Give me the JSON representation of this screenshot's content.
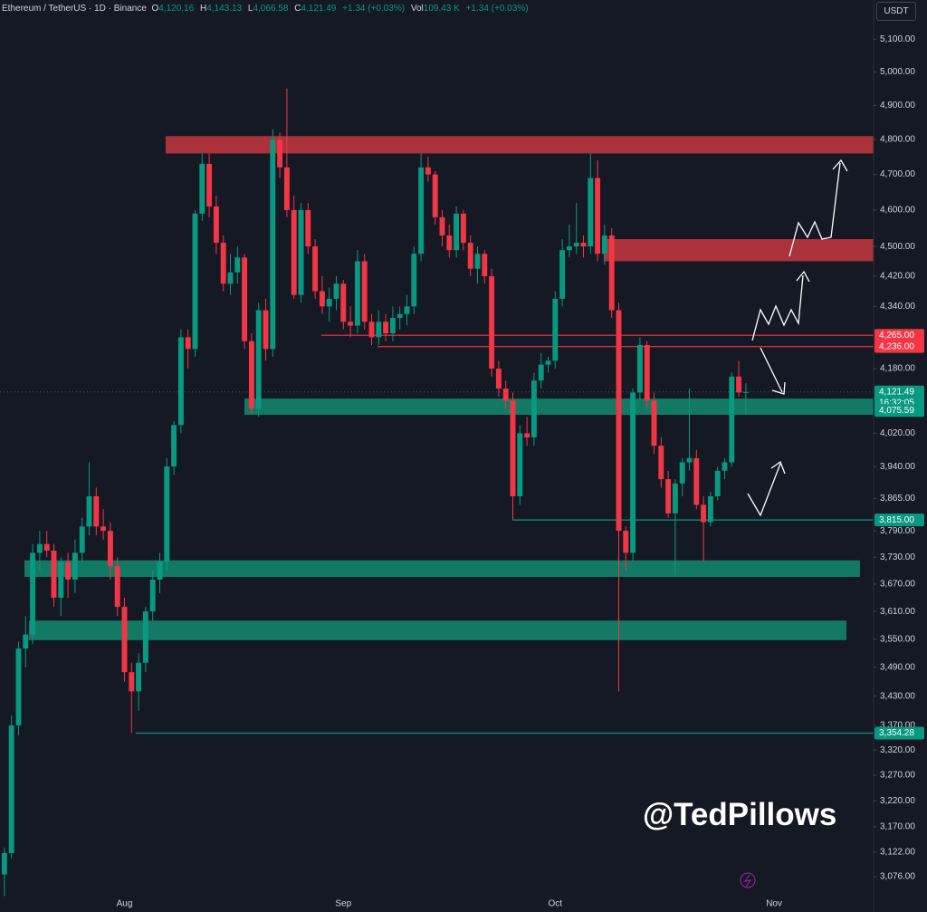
{
  "header": {
    "title": "Ethereum / TetherUS · 1D · Binance",
    "ohlc": [
      {
        "key": "O",
        "value": "4,120.16"
      },
      {
        "key": "H",
        "value": "4,143.13"
      },
      {
        "key": "L",
        "value": "4,066.58"
      },
      {
        "key": "C",
        "value": "4,121.49"
      }
    ],
    "change": "+1.34 (+0.03%)",
    "volume_key": "Vol",
    "volume": "109.43 K",
    "volume_change": "+1.34 (+0.03%)",
    "currency": "USDT",
    "watermark": "@TedPillows"
  },
  "chart_data": {
    "type": "candlestick",
    "log_scale": true,
    "grid": false,
    "up_color": "#089981",
    "down_color": "#f23645",
    "categories": [
      null,
      null,
      null,
      null,
      null,
      null,
      null,
      null,
      null,
      null,
      null,
      null,
      null,
      null,
      null,
      null,
      null,
      "Aug",
      null,
      null,
      null,
      null,
      null,
      null,
      null,
      null,
      null,
      null,
      null,
      null,
      null,
      null,
      null,
      null,
      null,
      null,
      null,
      null,
      null,
      null,
      null,
      null,
      null,
      null,
      null,
      null,
      null,
      null,
      "Sep",
      null,
      null,
      null,
      null,
      null,
      null,
      null,
      null,
      null,
      null,
      null,
      null,
      null,
      null,
      null,
      null,
      null,
      null,
      null,
      null,
      null,
      null,
      null,
      null,
      null,
      null,
      null,
      null,
      null,
      "Oct",
      null,
      null,
      null,
      null,
      null,
      null,
      null,
      null,
      null,
      null,
      null,
      null,
      null,
      null,
      null,
      null,
      null,
      null,
      null,
      null,
      null,
      null,
      null,
      null,
      null,
      null,
      null,
      null,
      null,
      null,
      "Nov"
    ],
    "open": [
      3080,
      3120,
      3370,
      3530,
      3560,
      3740,
      3760,
      3745,
      3640,
      3720,
      3680,
      3740,
      3800,
      3870,
      3800,
      3790,
      3710,
      3620,
      3480,
      3440,
      3500,
      3610,
      3680,
      3720,
      3940,
      4040,
      4260,
      4230,
      4590,
      4730,
      4610,
      4510,
      4400,
      4430,
      4470,
      4250,
      4080,
      4330,
      4230,
      4800,
      4720,
      4600,
      4370,
      4600,
      4500,
      4380,
      4340,
      4360,
      4400,
      4300,
      4290,
      4460,
      4300,
      4260,
      4300,
      4270,
      4310,
      4320,
      4340,
      4480,
      4720,
      4700,
      4580,
      4530,
      4490,
      4590,
      4510,
      4440,
      4480,
      4420,
      4180,
      4130,
      4100,
      3870,
      4020,
      4010,
      4150,
      4190,
      4200,
      4360,
      4490,
      4500,
      4510,
      4500,
      4690,
      4480,
      4530,
      4330,
      3790,
      3740,
      4120,
      4240,
      4100,
      3990,
      3910,
      3830,
      3900,
      3950,
      3960,
      3850,
      3810,
      3870,
      3930,
      3950,
      4160,
      4120.16,
      null,
      null,
      null,
      null
    ],
    "high": [
      3130,
      3390,
      3545,
      3600,
      3760,
      3790,
      3790,
      3760,
      3730,
      3740,
      3770,
      3820,
      3950,
      3890,
      3840,
      3810,
      3730,
      3640,
      3500,
      3520,
      3620,
      3700,
      3740,
      3960,
      4050,
      4280,
      4280,
      4600,
      4760,
      4760,
      4640,
      4530,
      4480,
      4500,
      4480,
      4270,
      4350,
      4360,
      4830,
      4820,
      4950,
      4640,
      4620,
      4620,
      4520,
      4420,
      4390,
      4420,
      4410,
      4340,
      4490,
      4480,
      4320,
      4330,
      4320,
      4340,
      4340,
      4370,
      4500,
      4760,
      4750,
      4710,
      4600,
      4560,
      4610,
      4600,
      4530,
      4500,
      4490,
      4440,
      4200,
      4150,
      4120,
      4040,
      4060,
      4170,
      4220,
      4210,
      4380,
      4520,
      4560,
      4620,
      4530,
      4760,
      4740,
      4560,
      4550,
      4350,
      3800,
      4130,
      4260,
      4250,
      4120,
      4010,
      3930,
      3910,
      3960,
      4130,
      3980,
      3870,
      3880,
      3940,
      3960,
      4170,
      4200,
      4143.13,
      null,
      null,
      null,
      null
    ],
    "low": [
      3040,
      3110,
      3350,
      3490,
      3540,
      3700,
      3730,
      3620,
      3600,
      3640,
      3650,
      3720,
      3780,
      3780,
      3770,
      3680,
      3600,
      3460,
      3354.28,
      3400,
      3480,
      3590,
      3650,
      3700,
      3920,
      4020,
      4180,
      4210,
      4570,
      4580,
      4480,
      4380,
      4370,
      4400,
      4230,
      4070,
      4060,
      4200,
      4210,
      4690,
      4580,
      4360,
      4350,
      4480,
      4360,
      4320,
      4300,
      4330,
      4280,
      4260,
      4270,
      4280,
      4240,
      4240,
      4250,
      4250,
      4280,
      4290,
      4320,
      4460,
      4680,
      4560,
      4500,
      4470,
      4470,
      4490,
      4420,
      4400,
      4400,
      4160,
      4110,
      4080,
      3815,
      3850,
      3990,
      3990,
      4130,
      4170,
      4180,
      4340,
      4470,
      4480,
      4470,
      4480,
      4460,
      4450,
      4310,
      3440,
      3700,
      3720,
      4100,
      4080,
      3970,
      3890,
      3820,
      3690,
      3870,
      3930,
      3840,
      3720,
      3800,
      3860,
      3910,
      3940,
      4110,
      4066.58,
      null,
      null,
      null,
      null
    ],
    "close": [
      3120,
      3370,
      3530,
      3560,
      3740,
      3760,
      3745,
      3640,
      3720,
      3680,
      3740,
      3800,
      3870,
      3800,
      3790,
      3710,
      3620,
      3480,
      3440,
      3500,
      3610,
      3680,
      3720,
      3940,
      4040,
      4260,
      4230,
      4590,
      4730,
      4610,
      4510,
      4400,
      4430,
      4470,
      4250,
      4080,
      4330,
      4230,
      4800,
      4720,
      4600,
      4370,
      4600,
      4500,
      4380,
      4340,
      4360,
      4400,
      4300,
      4290,
      4460,
      4300,
      4260,
      4300,
      4270,
      4310,
      4320,
      4340,
      4480,
      4720,
      4700,
      4580,
      4530,
      4490,
      4590,
      4510,
      4440,
      4480,
      4420,
      4180,
      4130,
      4100,
      3870,
      4020,
      4010,
      4150,
      4190,
      4200,
      4360,
      4490,
      4500,
      4510,
      4500,
      4690,
      4480,
      4530,
      4330,
      3790,
      3740,
      4120,
      4240,
      4100,
      3990,
      3910,
      3830,
      3900,
      3950,
      3960,
      3850,
      3810,
      3870,
      3930,
      3950,
      4160,
      4120.16,
      4121.49,
      null,
      null,
      null,
      null
    ],
    "ylim": [
      3039,
      5222
    ],
    "yticks": [
      {
        "value": 5100,
        "label": "5,100.00"
      },
      {
        "value": 5000,
        "label": "5,000.00"
      },
      {
        "value": 4900,
        "label": "4,900.00"
      },
      {
        "value": 4800,
        "label": "4,800.00"
      },
      {
        "value": 4700,
        "label": "4,700.00"
      },
      {
        "value": 4600,
        "label": "4,600.00"
      },
      {
        "value": 4500,
        "label": "4,500.00"
      },
      {
        "value": 4420,
        "label": "4,420.00"
      },
      {
        "value": 4340,
        "label": "4,340.00"
      },
      {
        "value": 4180,
        "label": "4,180.00"
      },
      {
        "value": 4020,
        "label": "4,020.00"
      },
      {
        "value": 3940,
        "label": "3,940.00"
      },
      {
        "value": 3865,
        "label": "3,865.00"
      },
      {
        "value": 3790,
        "label": "3,790.00"
      },
      {
        "value": 3730,
        "label": "3,730.00"
      },
      {
        "value": 3670,
        "label": "3,670.00"
      },
      {
        "value": 3610,
        "label": "3,610.00"
      },
      {
        "value": 3550,
        "label": "3,550.00"
      },
      {
        "value": 3490,
        "label": "3,490.00"
      },
      {
        "value": 3430,
        "label": "3,430.00"
      },
      {
        "value": 3370,
        "label": "3,370.00"
      },
      {
        "value": 3320,
        "label": "3,320.00"
      },
      {
        "value": 3270,
        "label": "3,270.00"
      },
      {
        "value": 3220,
        "label": "3,220.00"
      },
      {
        "value": 3170,
        "label": "3,170.00"
      },
      {
        "value": 3122,
        "label": "3,122.00"
      },
      {
        "value": 3076,
        "label": "3,076.00"
      }
    ],
    "zones": [
      {
        "low": 4760,
        "high": 4810,
        "color": "#b8333d"
      },
      {
        "low": 4460,
        "high": 4520,
        "color": "#b8333d"
      },
      {
        "low": 4065,
        "high": 4105,
        "color": "#12826a"
      },
      {
        "low": 3686,
        "high": 3723,
        "color": "#12826a"
      },
      {
        "low": 3548,
        "high": 3590,
        "color": "#12826a"
      }
    ],
    "levels": [
      {
        "value": 4265,
        "label": "4,265.00",
        "color": "#f23645"
      },
      {
        "value": 4236,
        "label": "4,236.00",
        "color": "#f23645"
      },
      {
        "value": 4121.49,
        "label": "4,121.49",
        "sublabel": "16:32:05",
        "color": "#089981"
      },
      {
        "value": 4075.59,
        "label": "4,075.59",
        "color": "#089981"
      },
      {
        "value": 3815,
        "label": "3,815.00",
        "color": "#089981"
      },
      {
        "value": 3354.28,
        "label": "3,354.28",
        "color": "#089981"
      }
    ]
  }
}
